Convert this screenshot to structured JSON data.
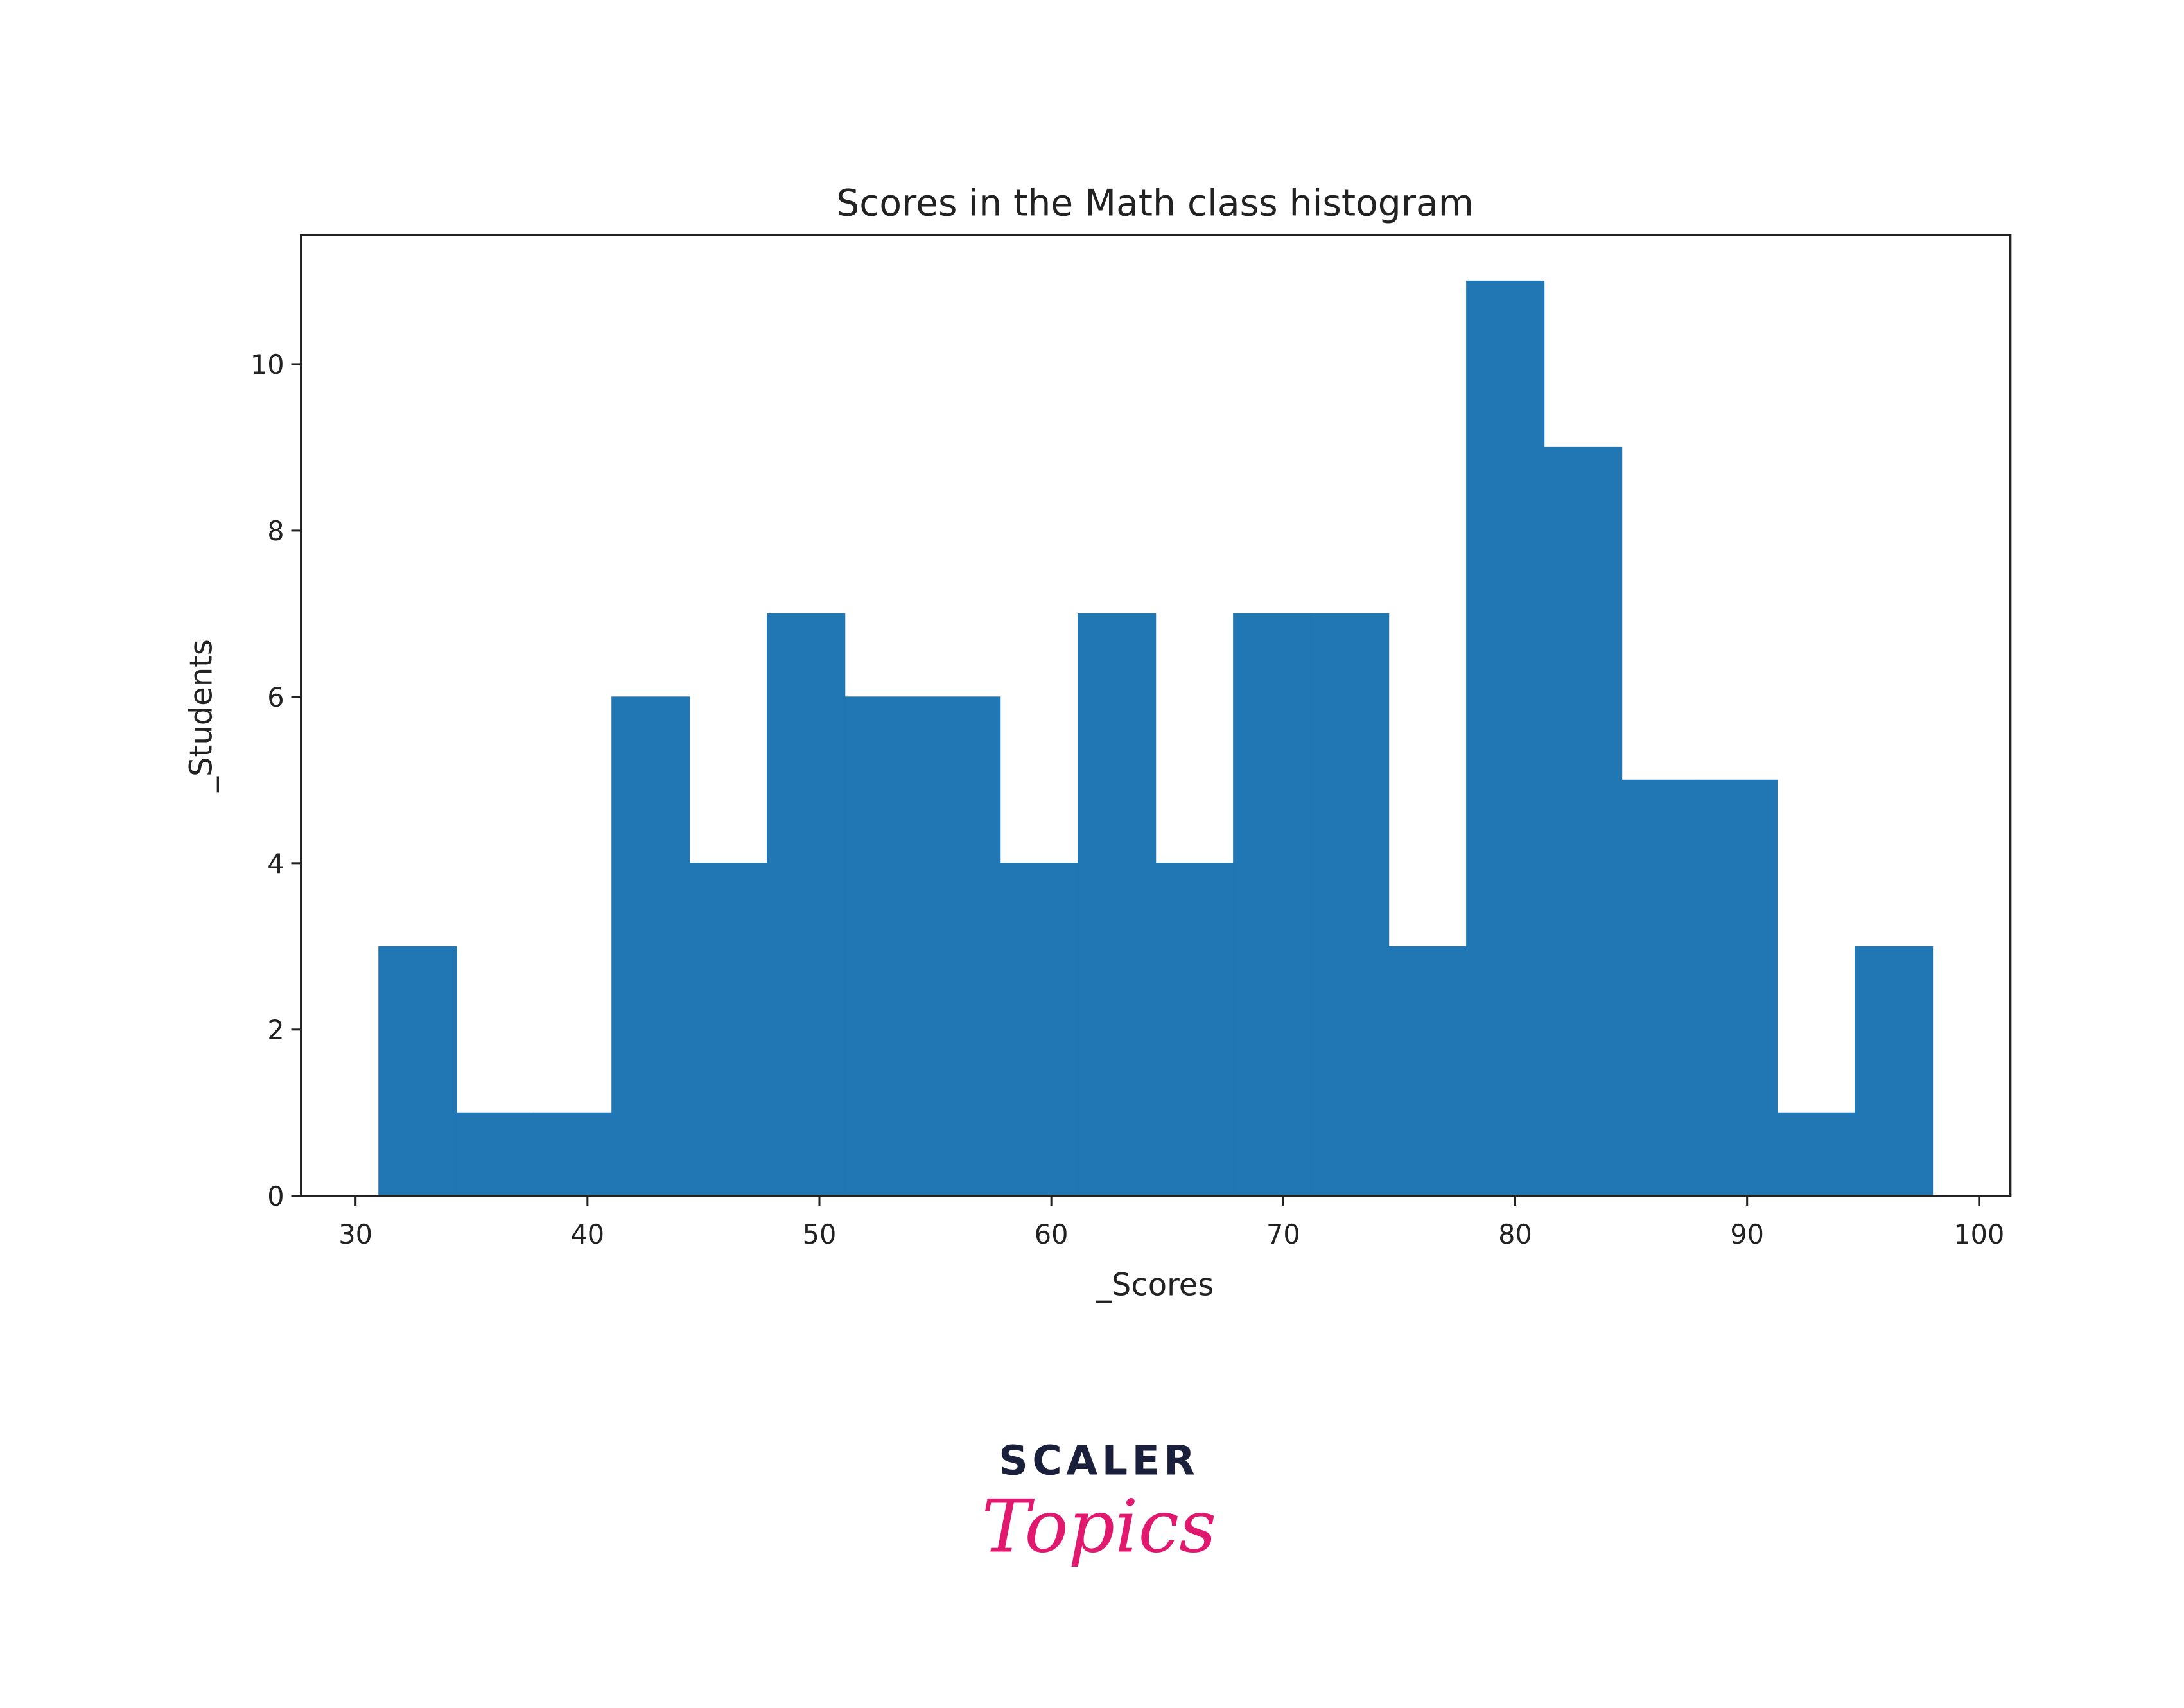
{
  "chart_data": {
    "type": "histogram",
    "title": "Scores in the Math class histogram",
    "xlabel": "_Scores",
    "ylabel": "_Students",
    "bins": [
      31,
      34.35,
      37.7,
      41.05,
      44.4,
      47.75,
      51.1,
      54.45,
      57.8,
      61.15,
      64.5,
      67.85,
      71.2,
      74.55,
      77.9,
      81.25,
      84.6,
      87.95,
      91.3,
      94.65,
      98
    ],
    "values": [
      3,
      1,
      1,
      6,
      4,
      7,
      6,
      6,
      4,
      7,
      4,
      7,
      7,
      3,
      11,
      9,
      5,
      5,
      1,
      3
    ],
    "color": "#2077b4",
    "xlim": [
      27.65,
      101.35
    ],
    "xticks": [
      30,
      40,
      50,
      60,
      70,
      80,
      90,
      100
    ],
    "ylim": [
      0,
      11.55
    ],
    "yticks": [
      0,
      2,
      4,
      6,
      8,
      10
    ],
    "grid": false
  },
  "logo": {
    "brand": "SCALER",
    "product": "Topics"
  }
}
